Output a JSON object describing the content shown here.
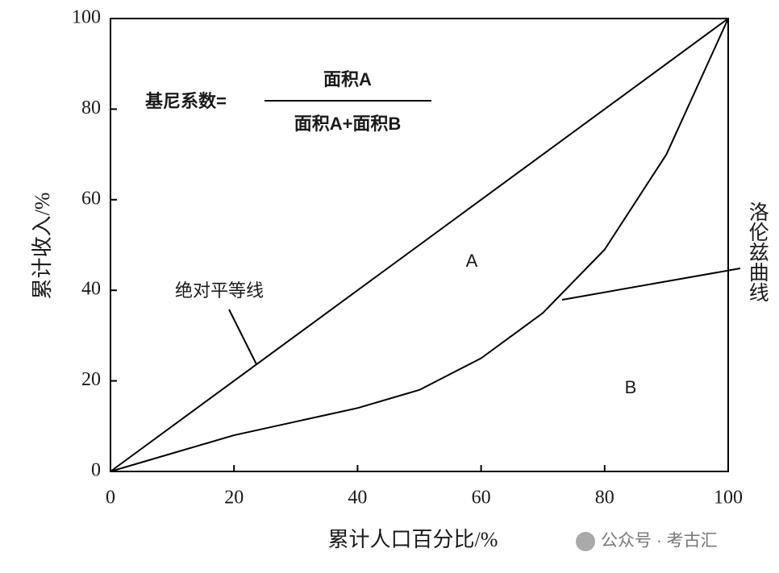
{
  "chart_data": {
    "type": "line",
    "x_label": "累计人口百分比/%",
    "y_label": "累计收入/%",
    "formula": {
      "lhs": "基尼系数=",
      "numerator": "面积A",
      "denominator": "面积A+面积B"
    },
    "region_labels": [
      "A",
      "B"
    ],
    "watermark": "公众号 · 考古汇",
    "xlim": [
      0,
      100
    ],
    "ylim": [
      0,
      100
    ],
    "xticks": [
      0,
      20,
      40,
      60,
      80,
      100
    ],
    "yticks": [
      0,
      20,
      40,
      60,
      80,
      100
    ],
    "series": [
      {
        "name": "绝对平等线",
        "color": "#000000",
        "x": [
          0,
          100
        ],
        "values": [
          0,
          100
        ]
      },
      {
        "name": "洛伦兹曲线",
        "color": "#000000",
        "x": [
          0,
          10,
          20,
          30,
          40,
          50,
          60,
          70,
          80,
          90,
          100
        ],
        "values": [
          0,
          4,
          8,
          11,
          14,
          18,
          25,
          35,
          49,
          70,
          100
        ]
      }
    ]
  }
}
